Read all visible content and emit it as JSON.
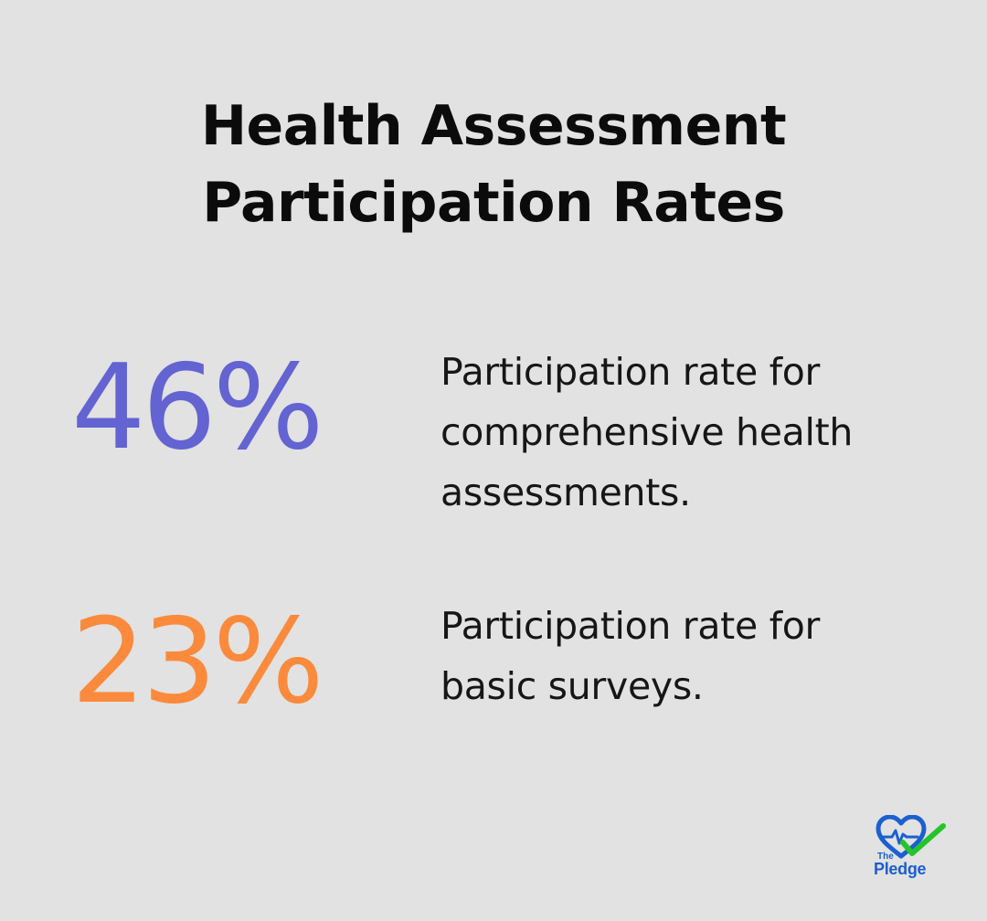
{
  "title": {
    "line1": "Health Assessment",
    "line2": "Participation Rates"
  },
  "stats": [
    {
      "value": "46%",
      "color": "#6363d2",
      "description_lines": [
        "Participation rate for",
        "comprehensive health",
        "assessments."
      ]
    },
    {
      "value": "23%",
      "color": "#fb8a3c",
      "description_lines": [
        "Participation rate for",
        "basic surveys."
      ]
    }
  ],
  "logo": {
    "small_text": "The",
    "large_text": "Pledge",
    "icon": "heart-check-icon",
    "colors": {
      "heart": "#1c5fd0",
      "check": "#25c42b"
    }
  },
  "colors": {
    "background": "#e1e2e1",
    "text": "#0b0b0b"
  }
}
